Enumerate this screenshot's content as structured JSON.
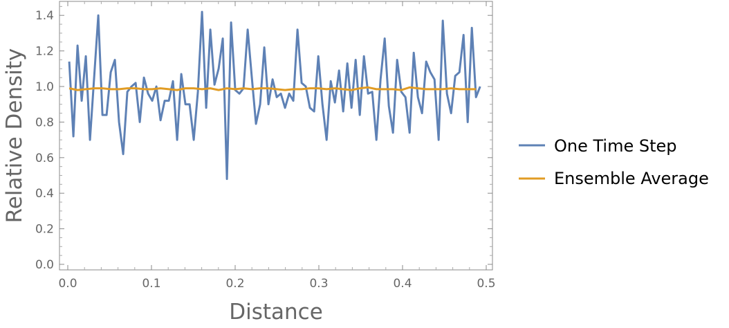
{
  "chart_data": {
    "type": "line",
    "title": "",
    "xlabel": "Distance",
    "ylabel": "Relative Density",
    "xlim": [
      -0.01,
      0.5075
    ],
    "ylim": [
      -0.03,
      1.48
    ],
    "xticks": [
      "0.0",
      "0.1",
      "0.2",
      "0.3",
      "0.4",
      "0.5"
    ],
    "xtick_values": [
      0,
      0.1,
      0.2,
      0.3,
      0.4,
      0.5
    ],
    "yticks": [
      "0.0",
      "0.2",
      "0.4",
      "0.6",
      "0.8",
      "1.0",
      "1.2",
      "1.4"
    ],
    "ytick_values": [
      0,
      0.2,
      0.4,
      0.6,
      0.8,
      1.0,
      1.2,
      1.4
    ],
    "grid": false,
    "legend_position": "right",
    "series": [
      {
        "name": "One Time Step",
        "color": "#5e81b5",
        "x_start": 0.0017,
        "x_step": 0.00496,
        "values": [
          1.14,
          0.72,
          1.23,
          0.92,
          1.17,
          0.7,
          1.05,
          1.4,
          0.84,
          0.84,
          1.08,
          1.15,
          0.8,
          0.62,
          0.97,
          1.0,
          1.02,
          0.8,
          1.05,
          0.96,
          0.92,
          1.0,
          0.81,
          0.92,
          0.92,
          1.03,
          0.7,
          1.07,
          0.9,
          0.9,
          0.7,
          0.97,
          1.42,
          0.88,
          1.32,
          1.01,
          1.1,
          1.27,
          0.48,
          1.36,
          0.98,
          0.96,
          0.99,
          1.32,
          1.05,
          0.79,
          0.9,
          1.22,
          0.9,
          1.04,
          0.94,
          0.96,
          0.88,
          0.96,
          0.92,
          1.32,
          1.02,
          1.0,
          0.88,
          0.86,
          1.17,
          0.9,
          0.7,
          1.03,
          0.91,
          1.09,
          0.86,
          1.13,
          0.88,
          1.15,
          0.84,
          1.17,
          0.96,
          0.97,
          0.7,
          1.04,
          1.27,
          0.89,
          0.74,
          1.15,
          0.97,
          0.94,
          0.74,
          1.19,
          0.94,
          0.85,
          1.14,
          1.08,
          1.04,
          0.7,
          1.37,
          0.96,
          0.85,
          1.06,
          1.08,
          1.29,
          0.8,
          1.33,
          0.94,
          1.0
        ]
      },
      {
        "name": "Ensemble Average",
        "color": "#e19c24",
        "x_start": 0.0017,
        "x_step": 0.00992,
        "values": [
          0.99,
          0.98,
          0.985,
          0.99,
          0.99,
          0.985,
          0.985,
          0.99,
          0.99,
          0.985,
          0.985,
          0.99,
          0.985,
          0.98,
          0.99,
          0.99,
          0.985,
          0.99,
          0.98,
          0.99,
          0.985,
          0.99,
          0.985,
          0.99,
          0.99,
          0.985,
          0.98,
          0.985,
          0.985,
          0.99,
          0.99,
          0.985,
          0.99,
          0.985,
          0.98,
          0.99,
          0.995,
          0.985,
          0.985,
          0.985,
          0.98,
          0.995,
          0.99,
          0.985,
          0.985,
          0.985,
          0.99,
          0.985,
          0.985,
          0.985
        ]
      }
    ]
  }
}
